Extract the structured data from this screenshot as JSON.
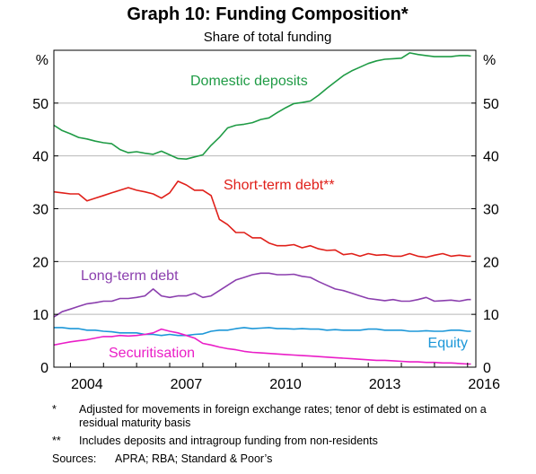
{
  "chart_data": {
    "type": "line",
    "title": "Graph 10: Funding Composition*",
    "subtitle": "Share of total funding",
    "y_unit": "%",
    "ylim": [
      0,
      60
    ],
    "yticks": [
      0,
      10,
      20,
      30,
      40,
      50
    ],
    "xlim": [
      2003.5,
      2016.25
    ],
    "xticks": [
      "2004",
      "2007",
      "2010",
      "2013",
      "2016"
    ],
    "grid": true,
    "series": [
      {
        "name": "Domestic deposits",
        "color": "#1f9b45",
        "points": [
          [
            2003.5,
            45.8
          ],
          [
            2003.75,
            44.8
          ],
          [
            2004.0,
            44.2
          ],
          [
            2004.25,
            43.5
          ],
          [
            2004.5,
            43.2
          ],
          [
            2004.75,
            42.8
          ],
          [
            2005.0,
            42.5
          ],
          [
            2005.25,
            42.3
          ],
          [
            2005.5,
            41.2
          ],
          [
            2005.75,
            40.6
          ],
          [
            2006.0,
            40.8
          ],
          [
            2006.25,
            40.5
          ],
          [
            2006.5,
            40.3
          ],
          [
            2006.75,
            40.9
          ],
          [
            2007.0,
            40.2
          ],
          [
            2007.25,
            39.5
          ],
          [
            2007.5,
            39.4
          ],
          [
            2007.75,
            39.8
          ],
          [
            2008.0,
            40.2
          ],
          [
            2008.25,
            42.0
          ],
          [
            2008.5,
            43.5
          ],
          [
            2008.75,
            45.3
          ],
          [
            2009.0,
            45.8
          ],
          [
            2009.25,
            46.0
          ],
          [
            2009.5,
            46.3
          ],
          [
            2009.75,
            46.9
          ],
          [
            2010.0,
            47.2
          ],
          [
            2010.25,
            48.2
          ],
          [
            2010.5,
            49.1
          ],
          [
            2010.75,
            49.9
          ],
          [
            2011.0,
            50.1
          ],
          [
            2011.25,
            50.4
          ],
          [
            2011.5,
            51.5
          ],
          [
            2011.75,
            52.8
          ],
          [
            2012.0,
            54.0
          ],
          [
            2012.25,
            55.2
          ],
          [
            2012.5,
            56.1
          ],
          [
            2012.75,
            56.8
          ],
          [
            2013.0,
            57.5
          ],
          [
            2013.25,
            58.0
          ],
          [
            2013.5,
            58.3
          ],
          [
            2013.75,
            58.4
          ],
          [
            2014.0,
            58.5
          ],
          [
            2014.25,
            59.5
          ],
          [
            2014.5,
            59.2
          ],
          [
            2014.75,
            59.0
          ],
          [
            2015.0,
            58.8
          ],
          [
            2015.25,
            58.8
          ],
          [
            2015.5,
            58.8
          ],
          [
            2015.75,
            59.0
          ],
          [
            2016.0,
            59.0
          ],
          [
            2016.1,
            58.9
          ]
        ]
      },
      {
        "name": "Short-term debt**",
        "color": "#e0201a",
        "points": [
          [
            2003.5,
            33.2
          ],
          [
            2003.75,
            33.0
          ],
          [
            2004.0,
            32.8
          ],
          [
            2004.25,
            32.8
          ],
          [
            2004.5,
            31.5
          ],
          [
            2004.75,
            32.0
          ],
          [
            2005.0,
            32.5
          ],
          [
            2005.25,
            33.0
          ],
          [
            2005.5,
            33.5
          ],
          [
            2005.75,
            34.0
          ],
          [
            2006.0,
            33.5
          ],
          [
            2006.25,
            33.2
          ],
          [
            2006.5,
            32.8
          ],
          [
            2006.75,
            32.0
          ],
          [
            2007.0,
            33.0
          ],
          [
            2007.25,
            35.2
          ],
          [
            2007.5,
            34.5
          ],
          [
            2007.75,
            33.5
          ],
          [
            2008.0,
            33.5
          ],
          [
            2008.25,
            32.5
          ],
          [
            2008.5,
            28.0
          ],
          [
            2008.75,
            27.0
          ],
          [
            2009.0,
            25.5
          ],
          [
            2009.25,
            25.5
          ],
          [
            2009.5,
            24.5
          ],
          [
            2009.75,
            24.5
          ],
          [
            2010.0,
            23.5
          ],
          [
            2010.25,
            23.0
          ],
          [
            2010.5,
            23.0
          ],
          [
            2010.75,
            23.2
          ],
          [
            2011.0,
            22.6
          ],
          [
            2011.25,
            23.0
          ],
          [
            2011.5,
            22.4
          ],
          [
            2011.75,
            22.1
          ],
          [
            2012.0,
            22.2
          ],
          [
            2012.25,
            21.3
          ],
          [
            2012.5,
            21.5
          ],
          [
            2012.75,
            21.0
          ],
          [
            2013.0,
            21.5
          ],
          [
            2013.25,
            21.2
          ],
          [
            2013.5,
            21.3
          ],
          [
            2013.75,
            21.0
          ],
          [
            2014.0,
            21.0
          ],
          [
            2014.25,
            21.5
          ],
          [
            2014.5,
            21.0
          ],
          [
            2014.75,
            20.8
          ],
          [
            2015.0,
            21.2
          ],
          [
            2015.25,
            21.5
          ],
          [
            2015.5,
            21.0
          ],
          [
            2015.75,
            21.2
          ],
          [
            2016.0,
            21.0
          ],
          [
            2016.1,
            21.0
          ]
        ]
      },
      {
        "name": "Long-term debt",
        "color": "#8b3fae",
        "points": [
          [
            2003.5,
            9.5
          ],
          [
            2003.75,
            10.5
          ],
          [
            2004.0,
            11.0
          ],
          [
            2004.25,
            11.5
          ],
          [
            2004.5,
            12.0
          ],
          [
            2004.75,
            12.2
          ],
          [
            2005.0,
            12.5
          ],
          [
            2005.25,
            12.5
          ],
          [
            2005.5,
            13.0
          ],
          [
            2005.75,
            13.0
          ],
          [
            2006.0,
            13.2
          ],
          [
            2006.25,
            13.5
          ],
          [
            2006.5,
            14.8
          ],
          [
            2006.75,
            13.5
          ],
          [
            2007.0,
            13.2
          ],
          [
            2007.25,
            13.5
          ],
          [
            2007.5,
            13.5
          ],
          [
            2007.75,
            14.0
          ],
          [
            2008.0,
            13.2
          ],
          [
            2008.25,
            13.5
          ],
          [
            2008.5,
            14.5
          ],
          [
            2008.75,
            15.5
          ],
          [
            2009.0,
            16.5
          ],
          [
            2009.25,
            17.0
          ],
          [
            2009.5,
            17.5
          ],
          [
            2009.75,
            17.8
          ],
          [
            2010.0,
            17.8
          ],
          [
            2010.25,
            17.5
          ],
          [
            2010.5,
            17.5
          ],
          [
            2010.75,
            17.6
          ],
          [
            2011.0,
            17.2
          ],
          [
            2011.25,
            17.0
          ],
          [
            2011.5,
            16.2
          ],
          [
            2011.75,
            15.5
          ],
          [
            2012.0,
            14.8
          ],
          [
            2012.25,
            14.5
          ],
          [
            2012.5,
            14.0
          ],
          [
            2012.75,
            13.5
          ],
          [
            2013.0,
            13.0
          ],
          [
            2013.25,
            12.8
          ],
          [
            2013.5,
            12.6
          ],
          [
            2013.75,
            12.8
          ],
          [
            2014.0,
            12.5
          ],
          [
            2014.25,
            12.5
          ],
          [
            2014.5,
            12.8
          ],
          [
            2014.75,
            13.2
          ],
          [
            2015.0,
            12.5
          ],
          [
            2015.25,
            12.6
          ],
          [
            2015.5,
            12.7
          ],
          [
            2015.75,
            12.5
          ],
          [
            2016.0,
            12.8
          ],
          [
            2016.1,
            12.8
          ]
        ]
      },
      {
        "name": "Equity",
        "color": "#1c97d8",
        "points": [
          [
            2003.5,
            7.5
          ],
          [
            2003.75,
            7.5
          ],
          [
            2004.0,
            7.3
          ],
          [
            2004.25,
            7.3
          ],
          [
            2004.5,
            7.0
          ],
          [
            2004.75,
            7.0
          ],
          [
            2005.0,
            6.8
          ],
          [
            2005.25,
            6.7
          ],
          [
            2005.5,
            6.5
          ],
          [
            2005.75,
            6.5
          ],
          [
            2006.0,
            6.5
          ],
          [
            2006.25,
            6.2
          ],
          [
            2006.5,
            6.2
          ],
          [
            2006.75,
            6.0
          ],
          [
            2007.0,
            6.2
          ],
          [
            2007.25,
            6.0
          ],
          [
            2007.5,
            6.0
          ],
          [
            2007.75,
            6.2
          ],
          [
            2008.0,
            6.3
          ],
          [
            2008.25,
            6.8
          ],
          [
            2008.5,
            7.0
          ],
          [
            2008.75,
            7.0
          ],
          [
            2009.0,
            7.3
          ],
          [
            2009.25,
            7.5
          ],
          [
            2009.5,
            7.3
          ],
          [
            2009.75,
            7.4
          ],
          [
            2010.0,
            7.5
          ],
          [
            2010.25,
            7.3
          ],
          [
            2010.5,
            7.3
          ],
          [
            2010.75,
            7.2
          ],
          [
            2011.0,
            7.3
          ],
          [
            2011.25,
            7.2
          ],
          [
            2011.5,
            7.2
          ],
          [
            2011.75,
            7.0
          ],
          [
            2012.0,
            7.1
          ],
          [
            2012.25,
            7.0
          ],
          [
            2012.5,
            7.0
          ],
          [
            2012.75,
            7.0
          ],
          [
            2013.0,
            7.2
          ],
          [
            2013.25,
            7.2
          ],
          [
            2013.5,
            7.0
          ],
          [
            2013.75,
            7.0
          ],
          [
            2014.0,
            7.0
          ],
          [
            2014.25,
            6.8
          ],
          [
            2014.5,
            6.8
          ],
          [
            2014.75,
            6.9
          ],
          [
            2015.0,
            6.8
          ],
          [
            2015.25,
            6.8
          ],
          [
            2015.5,
            7.0
          ],
          [
            2015.75,
            7.0
          ],
          [
            2016.0,
            6.8
          ],
          [
            2016.1,
            6.8
          ]
        ]
      },
      {
        "name": "Securitisation",
        "color": "#ea1ec7",
        "points": [
          [
            2003.5,
            4.2
          ],
          [
            2003.75,
            4.5
          ],
          [
            2004.0,
            4.8
          ],
          [
            2004.25,
            5.0
          ],
          [
            2004.5,
            5.2
          ],
          [
            2004.75,
            5.5
          ],
          [
            2005.0,
            5.8
          ],
          [
            2005.25,
            5.8
          ],
          [
            2005.5,
            6.0
          ],
          [
            2005.75,
            5.9
          ],
          [
            2006.0,
            6.0
          ],
          [
            2006.25,
            6.2
          ],
          [
            2006.5,
            6.5
          ],
          [
            2006.75,
            7.2
          ],
          [
            2007.0,
            6.8
          ],
          [
            2007.25,
            6.5
          ],
          [
            2007.5,
            6.0
          ],
          [
            2007.75,
            5.5
          ],
          [
            2008.0,
            4.5
          ],
          [
            2008.25,
            4.2
          ],
          [
            2008.5,
            3.8
          ],
          [
            2008.75,
            3.5
          ],
          [
            2009.0,
            3.3
          ],
          [
            2009.25,
            3.0
          ],
          [
            2009.5,
            2.8
          ],
          [
            2009.75,
            2.7
          ],
          [
            2010.0,
            2.6
          ],
          [
            2010.25,
            2.5
          ],
          [
            2010.5,
            2.4
          ],
          [
            2010.75,
            2.3
          ],
          [
            2011.0,
            2.2
          ],
          [
            2011.25,
            2.1
          ],
          [
            2011.5,
            2.0
          ],
          [
            2011.75,
            1.9
          ],
          [
            2012.0,
            1.8
          ],
          [
            2012.25,
            1.7
          ],
          [
            2012.5,
            1.6
          ],
          [
            2012.75,
            1.5
          ],
          [
            2013.0,
            1.4
          ],
          [
            2013.25,
            1.3
          ],
          [
            2013.5,
            1.3
          ],
          [
            2013.75,
            1.2
          ],
          [
            2014.0,
            1.1
          ],
          [
            2014.25,
            1.0
          ],
          [
            2014.5,
            1.0
          ],
          [
            2014.75,
            0.9
          ],
          [
            2015.0,
            0.9
          ],
          [
            2015.25,
            0.8
          ],
          [
            2015.5,
            0.8
          ],
          [
            2015.75,
            0.7
          ],
          [
            2016.0,
            0.6
          ],
          [
            2016.1,
            0.6
          ]
        ]
      }
    ]
  },
  "notes": {
    "n1_mark": "*",
    "n1_text": "Adjusted for movements in foreign exchange rates; tenor of debt is estimated on a residual maturity basis",
    "n2_mark": "**",
    "n2_text": "Includes deposits and intragroup funding from non-residents",
    "sources_label": "Sources:",
    "sources_text": "APRA; RBA; Standard & Poor’s"
  }
}
